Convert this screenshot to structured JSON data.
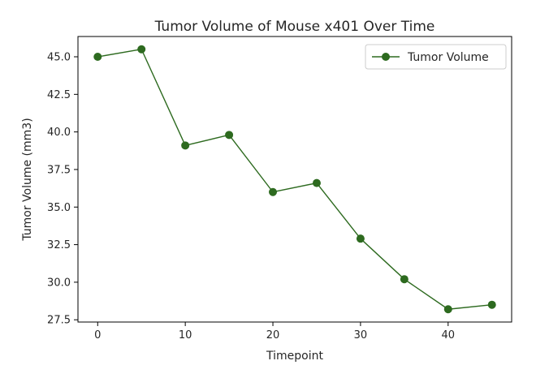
{
  "chart_data": {
    "type": "line",
    "title": "Tumor Volume of Mouse x401 Over Time",
    "xlabel": "Timepoint",
    "ylabel": "Tumor Volume (mm3)",
    "xlim": [
      -2.25,
      47.25
    ],
    "ylim": [
      27.35,
      46.35
    ],
    "xticks": [
      0,
      10,
      20,
      30,
      40
    ],
    "yticks": [
      27.5,
      30.0,
      32.5,
      35.0,
      37.5,
      40.0,
      42.5,
      45.0
    ],
    "ytick_labels": [
      "27.5",
      "30.0",
      "32.5",
      "35.0",
      "37.5",
      "40.0",
      "42.5",
      "45.0"
    ],
    "grid": false,
    "legend_position": "top-right",
    "series": [
      {
        "name": "Tumor Volume",
        "color": "#2d6a1f",
        "marker": "circle",
        "x": [
          0,
          5,
          10,
          15,
          20,
          25,
          30,
          35,
          40,
          45
        ],
        "y": [
          45.0,
          45.5,
          39.1,
          39.8,
          36.0,
          36.6,
          32.9,
          30.2,
          28.2,
          28.5
        ]
      }
    ]
  }
}
